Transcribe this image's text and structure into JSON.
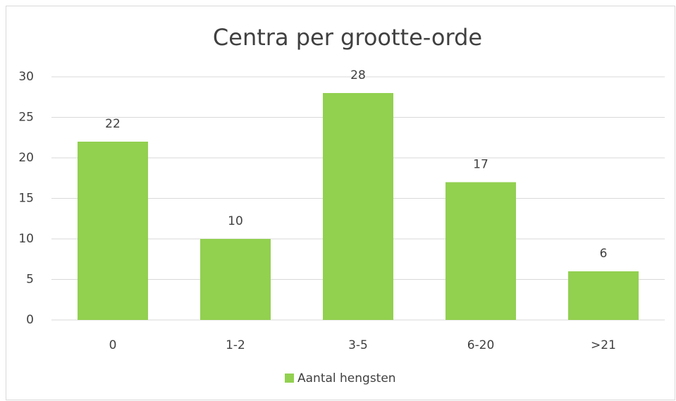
{
  "chart_data": {
    "type": "bar",
    "title": "Centra per grootte-orde",
    "categories": [
      "0",
      "1-2",
      "3-5",
      "6-20",
      ">21"
    ],
    "series": [
      {
        "name": "Aantal hengsten",
        "color": "#92d050",
        "values": [
          22,
          10,
          28,
          17,
          6
        ]
      }
    ],
    "ylim": [
      0,
      30
    ],
    "yticks": [
      0,
      5,
      10,
      15,
      20,
      25,
      30
    ],
    "grid": true,
    "legend": "bottom"
  }
}
